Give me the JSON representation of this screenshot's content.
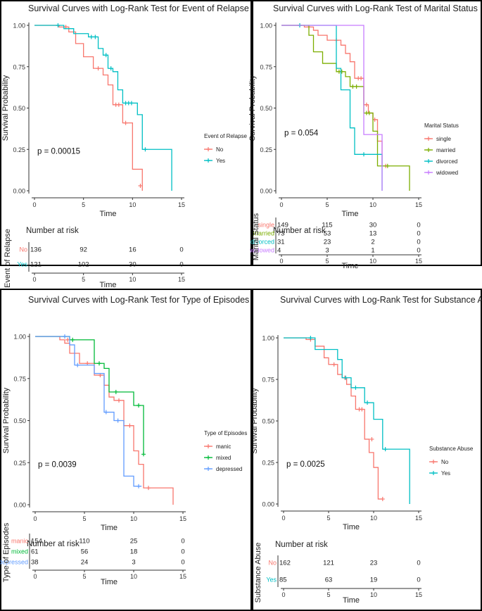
{
  "chart_data": [
    {
      "type": "line",
      "title": "Survival Curves with Log-Rank Test for Event of Relapse",
      "xlabel": "Time",
      "ylabel": "Survival Probability",
      "xlim": [
        0,
        15
      ],
      "ylim": [
        0,
        1
      ],
      "x_ticks": [
        "0",
        "5",
        "10",
        "15"
      ],
      "y_ticks": [
        "0.00",
        "0.25",
        "0.50",
        "0.75",
        "1.00"
      ],
      "pvalue": "p = 0.00015",
      "legend_title": "Event of Relapse",
      "legend_position": "right",
      "risk_title": "Number at risk",
      "risk_ylabel": "Event of Relapse",
      "risk_times": [
        0,
        5,
        10,
        15
      ],
      "series": [
        {
          "name": "No",
          "color": "#F8766D",
          "steps": [
            [
              0,
              1
            ],
            [
              2.5,
              0.99
            ],
            [
              3.5,
              0.96
            ],
            [
              4.2,
              0.89
            ],
            [
              5,
              0.81
            ],
            [
              6,
              0.74
            ],
            [
              7,
              0.7
            ],
            [
              7.5,
              0.64
            ],
            [
              8,
              0.52
            ],
            [
              9,
              0.41
            ],
            [
              10,
              0.13
            ],
            [
              11,
              0
            ]
          ],
          "censor": [
            [
              3.2,
              0.99
            ],
            [
              6.5,
              0.74
            ],
            [
              8.3,
              0.52
            ],
            [
              8.6,
              0.52
            ],
            [
              9.3,
              0.41
            ],
            [
              10.8,
              0.03
            ]
          ],
          "risk": [
            "136",
            "92",
            "16",
            "0"
          ]
        },
        {
          "name": "Yes",
          "color": "#00BFC4",
          "steps": [
            [
              0,
              1
            ],
            [
              3,
              0.98
            ],
            [
              4,
              0.95
            ],
            [
              5.5,
              0.93
            ],
            [
              6.5,
              0.86
            ],
            [
              7,
              0.82
            ],
            [
              7.5,
              0.74
            ],
            [
              8,
              0.72
            ],
            [
              8.5,
              0.61
            ],
            [
              9,
              0.53
            ],
            [
              10.5,
              0.46
            ],
            [
              11,
              0.25
            ],
            [
              14,
              0
            ]
          ],
          "censor": [
            [
              2.4,
              1
            ],
            [
              5.8,
              0.93
            ],
            [
              6.2,
              0.93
            ],
            [
              7.3,
              0.82
            ],
            [
              7.8,
              0.74
            ],
            [
              9.3,
              0.53
            ],
            [
              9.6,
              0.53
            ],
            [
              9.9,
              0.53
            ],
            [
              11.3,
              0.25
            ]
          ],
          "risk": [
            "121",
            "102",
            "30",
            "0"
          ]
        }
      ]
    },
    {
      "type": "line",
      "title": "Survival Curves with Log-Rank Test of Marital Status",
      "xlabel": "Time",
      "ylabel": "Survival Probability",
      "xlim": [
        0,
        15
      ],
      "ylim": [
        0,
        1
      ],
      "x_ticks": [
        "0",
        "5",
        "10",
        "15"
      ],
      "y_ticks": [
        "0.00",
        "0.25",
        "0.50",
        "0.75",
        "1.00"
      ],
      "pvalue": "p = 0.054",
      "legend_title": "Marital Status",
      "legend_position": "right",
      "risk_title": "Number at risk",
      "risk_ylabel": "Marital Status",
      "risk_times": [
        0,
        5,
        10,
        15
      ],
      "series": [
        {
          "name": "single",
          "color": "#F8766D",
          "steps": [
            [
              0,
              1
            ],
            [
              2.5,
              0.99
            ],
            [
              3.5,
              0.97
            ],
            [
              4,
              0.94
            ],
            [
              5,
              0.91
            ],
            [
              6.5,
              0.88
            ],
            [
              7,
              0.83
            ],
            [
              7.5,
              0.78
            ],
            [
              8,
              0.68
            ],
            [
              9,
              0.52
            ],
            [
              9.5,
              0.47
            ],
            [
              10,
              0.43
            ],
            [
              10.5,
              0.3
            ],
            [
              11,
              0.15
            ]
          ],
          "censor": [
            [
              3,
              0.99
            ],
            [
              6,
              0.91
            ],
            [
              8.4,
              0.68
            ],
            [
              8.7,
              0.68
            ],
            [
              9.3,
              0.52
            ],
            [
              10.2,
              0.43
            ],
            [
              11.4,
              0.15
            ]
          ],
          "risk": [
            "149",
            "115",
            "30",
            "0"
          ]
        },
        {
          "name": "married",
          "color": "#7CAE00",
          "steps": [
            [
              0,
              1
            ],
            [
              3,
              0.94
            ],
            [
              3.5,
              0.84
            ],
            [
              4.5,
              0.77
            ],
            [
              6,
              0.72
            ],
            [
              7,
              0.69
            ],
            [
              7.5,
              0.63
            ],
            [
              9,
              0.47
            ],
            [
              10,
              0.36
            ],
            [
              10.5,
              0.15
            ],
            [
              14,
              0
            ]
          ],
          "censor": [
            [
              6.3,
              0.72
            ],
            [
              6.6,
              0.72
            ],
            [
              7.8,
              0.63
            ],
            [
              8.2,
              0.63
            ],
            [
              9.3,
              0.47
            ],
            [
              9.6,
              0.47
            ],
            [
              11.6,
              0.15
            ]
          ],
          "risk": [
            "73",
            "53",
            "13",
            "0"
          ]
        },
        {
          "name": "divorced",
          "color": "#00BFC4",
          "steps": [
            [
              0,
              1
            ],
            [
              6,
              0.74
            ],
            [
              6.5,
              0.61
            ],
            [
              7.5,
              0.38
            ],
            [
              8,
              0.22
            ],
            [
              11,
              0
            ]
          ],
          "censor": [
            [
              2,
              1
            ],
            [
              9,
              0.22
            ]
          ],
          "risk": [
            "31",
            "23",
            "2",
            "0"
          ]
        },
        {
          "name": "widowed",
          "color": "#C77CFF",
          "steps": [
            [
              0,
              1
            ],
            [
              9,
              0.34
            ],
            [
              11,
              0
            ]
          ],
          "censor": [],
          "risk": [
            "4",
            "3",
            "1",
            "0"
          ]
        }
      ]
    },
    {
      "type": "line",
      "title": "Survival Curves with Log-Rank Test for Type of Episodes",
      "xlabel": "Time",
      "ylabel": "Survival Probability",
      "xlim": [
        0,
        15
      ],
      "ylim": [
        0,
        1
      ],
      "x_ticks": [
        "0",
        "5",
        "10",
        "15"
      ],
      "y_ticks": [
        "0.00",
        "0.25",
        "0.50",
        "0.75",
        "1.00"
      ],
      "pvalue": "p = 0.0039",
      "legend_title": "Type of Episodes",
      "legend_position": "right",
      "risk_title": "Number at risk",
      "risk_ylabel": "Type of Episodes",
      "risk_times": [
        0,
        5,
        10,
        15
      ],
      "series": [
        {
          "name": "manic",
          "color": "#F8766D",
          "steps": [
            [
              0,
              1
            ],
            [
              2.5,
              0.98
            ],
            [
              3,
              0.96
            ],
            [
              3.5,
              0.9
            ],
            [
              4.5,
              0.84
            ],
            [
              6,
              0.77
            ],
            [
              7,
              0.71
            ],
            [
              7.5,
              0.64
            ],
            [
              8,
              0.62
            ],
            [
              9,
              0.47
            ],
            [
              10,
              0.32
            ],
            [
              10.5,
              0.24
            ],
            [
              11,
              0.1
            ],
            [
              14,
              0
            ]
          ],
          "censor": [
            [
              3.3,
              0.98
            ],
            [
              5.3,
              0.84
            ],
            [
              6.6,
              0.77
            ],
            [
              8.5,
              0.62
            ],
            [
              9.6,
              0.47
            ],
            [
              11.5,
              0.1
            ]
          ],
          "risk": [
            "154",
            "110",
            "25",
            "0"
          ]
        },
        {
          "name": "mixed",
          "color": "#00BA38",
          "steps": [
            [
              0,
              1
            ],
            [
              3.5,
              0.98
            ],
            [
              6,
              0.84
            ],
            [
              7,
              0.81
            ],
            [
              7.5,
              0.67
            ],
            [
              9,
              0.67
            ],
            [
              10,
              0.59
            ],
            [
              11,
              0.3
            ]
          ],
          "censor": [
            [
              3.8,
              0.98
            ],
            [
              6.5,
              0.84
            ],
            [
              8.2,
              0.67
            ],
            [
              10.5,
              0.59
            ],
            [
              11,
              0.3
            ]
          ],
          "risk": [
            "61",
            "56",
            "18",
            "0"
          ]
        },
        {
          "name": "depressed",
          "color": "#619CFF",
          "steps": [
            [
              0,
              1
            ],
            [
              3.5,
              0.95
            ],
            [
              4,
              0.83
            ],
            [
              6,
              0.78
            ],
            [
              7,
              0.55
            ],
            [
              8,
              0.5
            ],
            [
              9,
              0.17
            ],
            [
              10,
              0.11
            ],
            [
              10.8,
              0.11
            ]
          ],
          "censor": [
            [
              3,
              1
            ],
            [
              4.3,
              0.83
            ],
            [
              7.2,
              0.55
            ],
            [
              8.4,
              0.5
            ],
            [
              10.5,
              0.11
            ]
          ],
          "risk": [
            "38",
            "24",
            "3",
            "0"
          ]
        }
      ]
    },
    {
      "type": "line",
      "title": "Survival Curves with Log-Rank Test for Substance Abuse",
      "xlabel": "Time",
      "ylabel": "Survival Probability",
      "xlim": [
        0,
        15
      ],
      "ylim": [
        0,
        1
      ],
      "x_ticks": [
        "0",
        "5",
        "10",
        "15"
      ],
      "y_ticks": [
        "0.00",
        "0.25",
        "0.50",
        "0.75",
        "1.00"
      ],
      "pvalue": "p = 0.0025",
      "legend_title": "Substance Abuse",
      "legend_position": "right",
      "risk_title": "Number at risk",
      "risk_ylabel": "Substance Abuse",
      "risk_times": [
        0,
        5,
        10,
        15
      ],
      "series": [
        {
          "name": "No",
          "color": "#F8766D",
          "steps": [
            [
              0,
              1
            ],
            [
              2.5,
              0.99
            ],
            [
              3.5,
              0.95
            ],
            [
              4.5,
              0.88
            ],
            [
              5,
              0.84
            ],
            [
              6,
              0.78
            ],
            [
              6.5,
              0.76
            ],
            [
              7,
              0.72
            ],
            [
              7.5,
              0.65
            ],
            [
              8,
              0.57
            ],
            [
              9,
              0.39
            ],
            [
              9.5,
              0.31
            ],
            [
              10,
              0.22
            ],
            [
              10.5,
              0.03
            ],
            [
              11,
              0.03
            ]
          ],
          "censor": [
            [
              3,
              0.99
            ],
            [
              5.6,
              0.84
            ],
            [
              6.8,
              0.76
            ],
            [
              8.4,
              0.57
            ],
            [
              8.7,
              0.57
            ],
            [
              9.8,
              0.39
            ],
            [
              11,
              0.03
            ]
          ],
          "risk": [
            "162",
            "121",
            "23",
            "0"
          ]
        },
        {
          "name": "Yes",
          "color": "#00BFC4",
          "steps": [
            [
              0,
              1
            ],
            [
              3.5,
              0.93
            ],
            [
              6,
              0.87
            ],
            [
              6.5,
              0.76
            ],
            [
              7.5,
              0.7
            ],
            [
              9,
              0.61
            ],
            [
              10,
              0.51
            ],
            [
              11,
              0.33
            ],
            [
              14,
              0
            ]
          ],
          "censor": [
            [
              3,
              1
            ],
            [
              6.9,
              0.76
            ],
            [
              8,
              0.7
            ],
            [
              9.3,
              0.61
            ],
            [
              11.3,
              0.33
            ]
          ],
          "risk": [
            "85",
            "63",
            "19",
            "0"
          ]
        }
      ]
    }
  ]
}
